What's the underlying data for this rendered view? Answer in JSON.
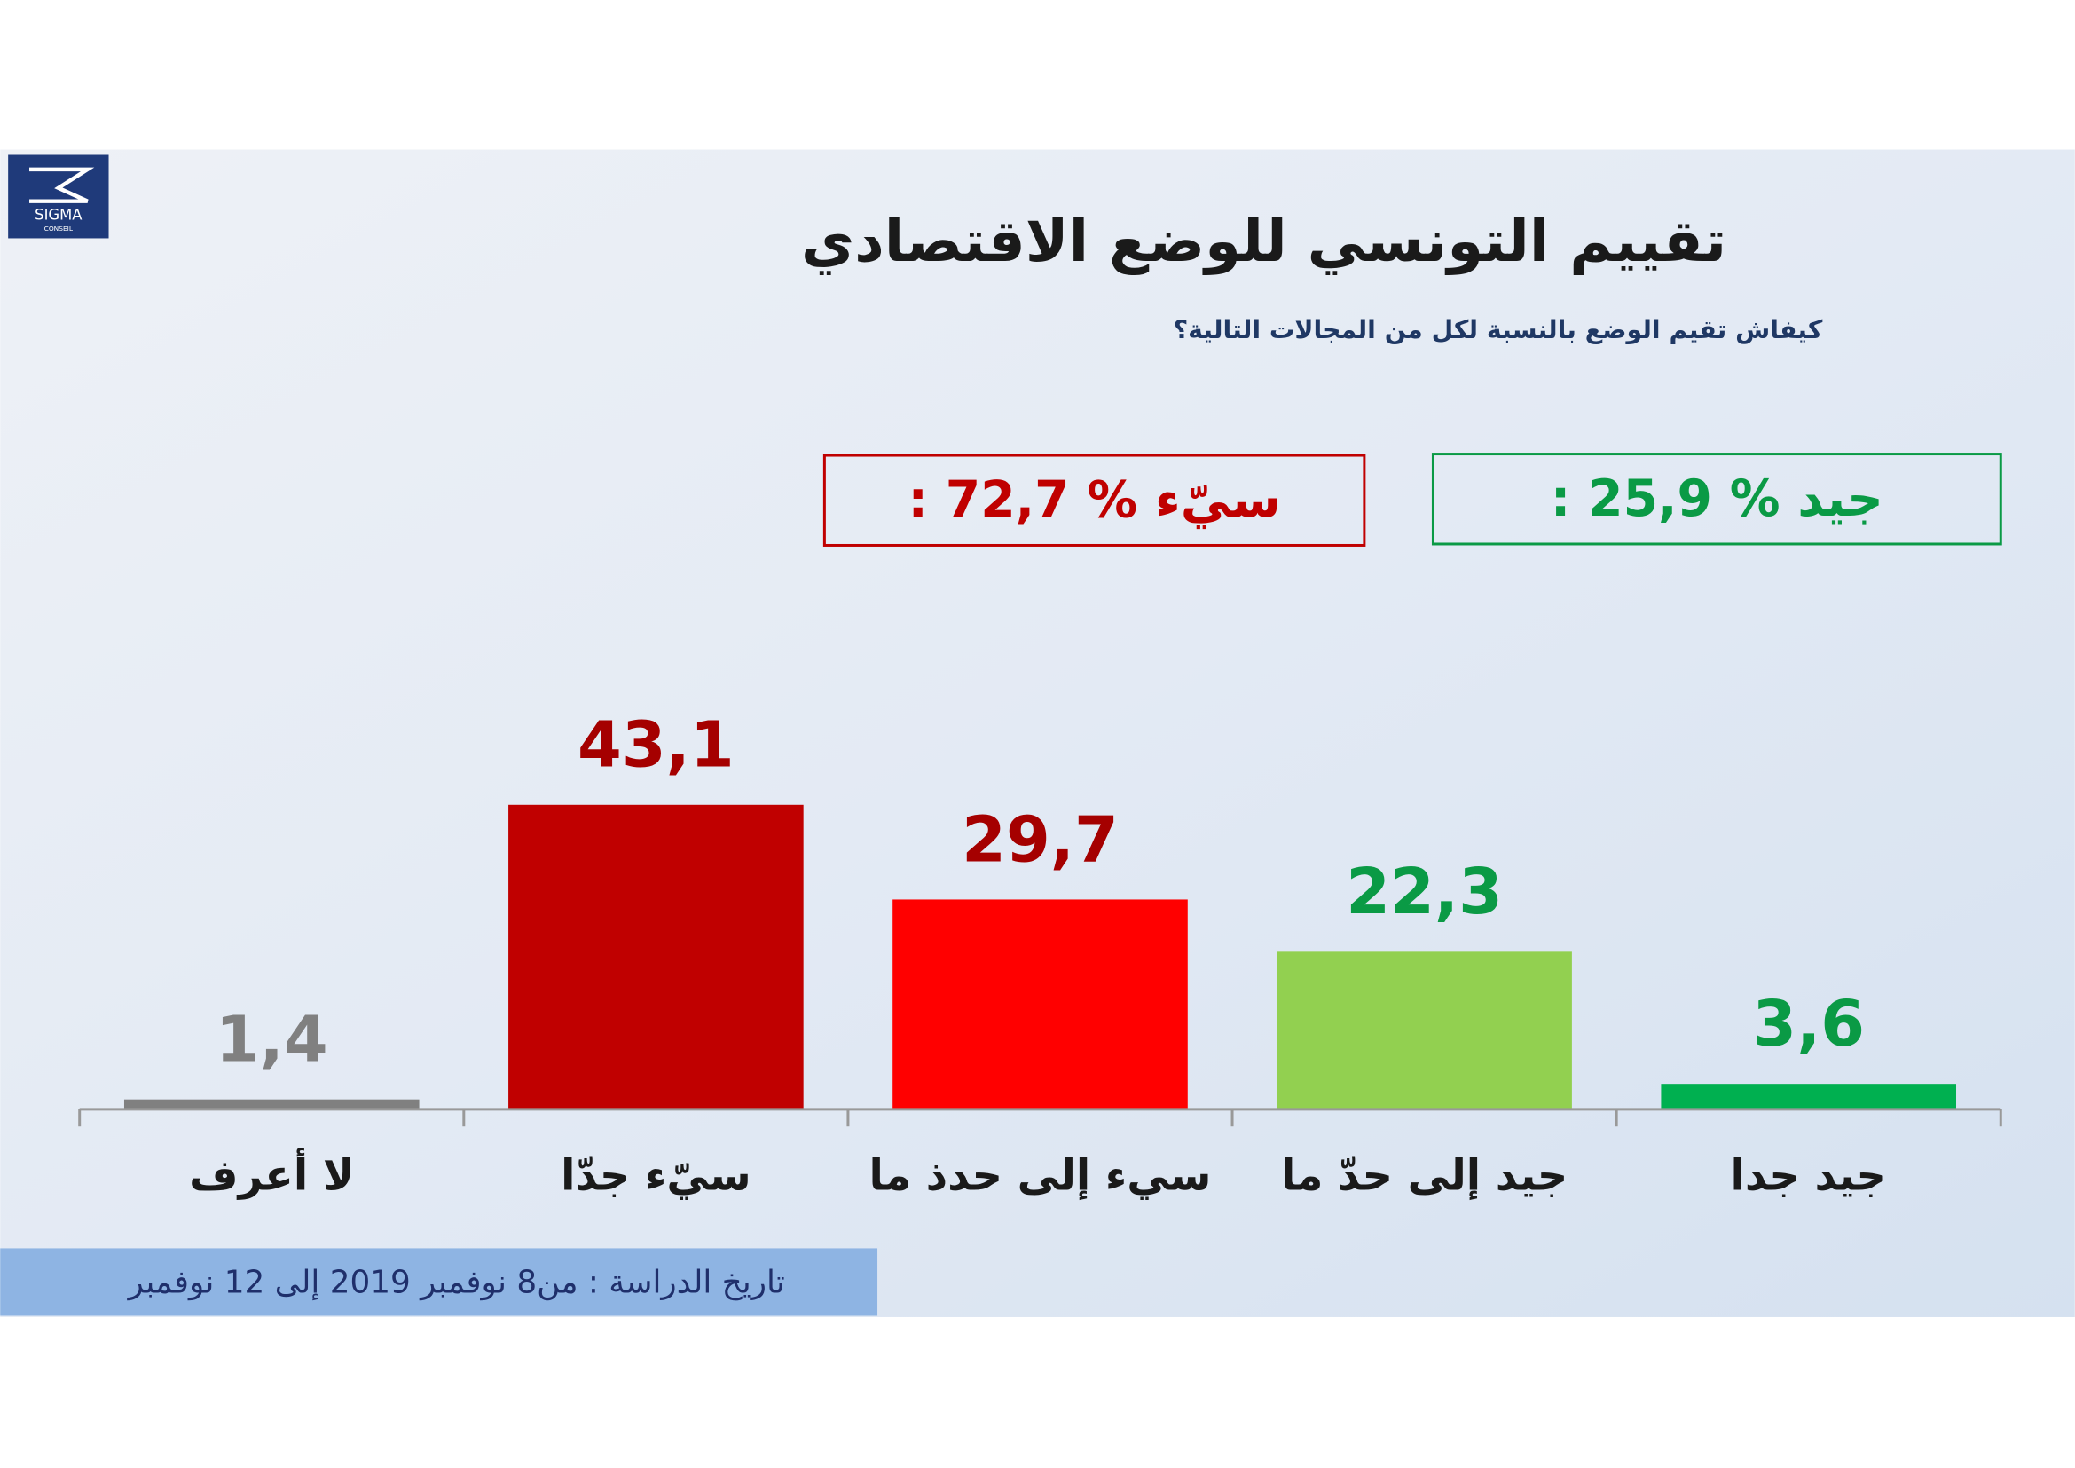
{
  "chart_data": {
    "type": "bar",
    "title": "تقييم التونسي للوضع الاقتصادي",
    "subtitle": "كيفاش تقيم الوضع بالنسبة لكل من المجالات التالية؟",
    "categories": [
      "لا أعرف",
      "سيّء جدّا",
      "سيء إلى حدذ ما",
      "جيد إلى حدّ ما",
      "جيد جدا"
    ],
    "values": [
      1.4,
      43.1,
      29.7,
      22.3,
      3.6
    ],
    "value_labels": [
      "1,4",
      "43,1",
      "29,7",
      "22,3",
      "3,6"
    ],
    "colors": [
      "#808080",
      "#c00000",
      "#ff0000",
      "#92d050",
      "#00b050"
    ],
    "value_label_colors": [
      "#808080",
      "#a50000",
      "#a50000",
      "#0a9a45",
      "#0a9a45"
    ],
    "annotations": [
      {
        "text": "سيّء % 72,7 :",
        "color": "#c00000"
      },
      {
        "text": "جيد % 25,9 :",
        "color": "#0a9a45"
      }
    ],
    "footer": "تاريخ الدراسة : من8  نوفمبر 2019 إلى 12 نوفمبر"
  },
  "logo": {
    "name": "SIGMA",
    "sub": "CONSEIL"
  }
}
